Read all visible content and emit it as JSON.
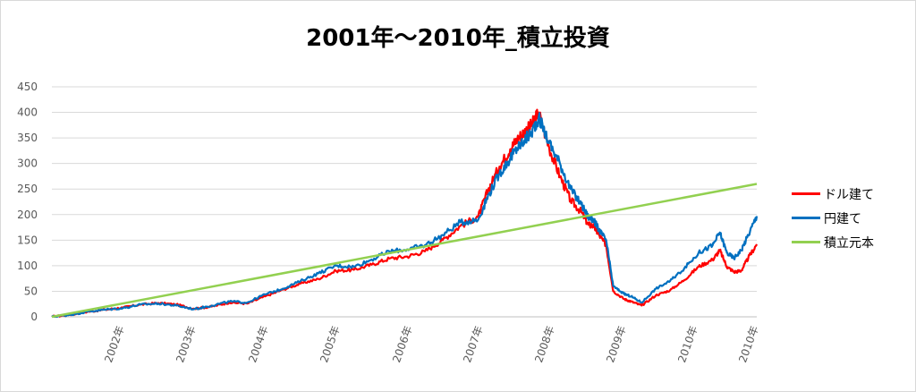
{
  "chart_data": {
    "type": "line",
    "title": "2001年～2010年_積立投資",
    "xlabel": "",
    "ylabel": "",
    "ylim": [
      0,
      450
    ],
    "yticks": [
      0,
      50,
      100,
      150,
      200,
      250,
      300,
      350,
      400,
      450
    ],
    "xlim": [
      2001.0,
      2010.92
    ],
    "xtick_labels": [
      "2002年",
      "2003年",
      "2004年",
      "2005年",
      "2006年",
      "2007年",
      "2008年",
      "2009年",
      "2010年",
      "2010年"
    ],
    "grid": true,
    "legend_position": "right",
    "series": [
      {
        "name": "ドル建て",
        "color": "#ff0000",
        "x": [
          2001.0,
          2001.25,
          2001.5,
          2001.75,
          2002.0,
          2002.25,
          2002.5,
          2002.75,
          2003.0,
          2003.25,
          2003.5,
          2003.75,
          2004.0,
          2004.25,
          2004.5,
          2004.75,
          2005.0,
          2005.25,
          2005.5,
          2005.75,
          2006.0,
          2006.25,
          2006.5,
          2006.75,
          2007.0,
          2007.15,
          2007.3,
          2007.45,
          2007.55,
          2007.65,
          2007.75,
          2007.85,
          2008.0,
          2008.15,
          2008.3,
          2008.45,
          2008.55,
          2008.62,
          2008.7,
          2008.8,
          2008.9,
          2009.05,
          2009.15,
          2009.3,
          2009.5,
          2009.7,
          2009.9,
          2010.1,
          2010.3,
          2010.4,
          2010.5,
          2010.6,
          2010.7,
          2010.8,
          2010.92
        ],
        "values": [
          0,
          4,
          10,
          14,
          18,
          24,
          27,
          24,
          16,
          20,
          28,
          26,
          40,
          53,
          65,
          74,
          90,
          92,
          102,
          114,
          118,
          128,
          150,
          178,
          196,
          252,
          294,
          328,
          348,
          362,
          375,
          400,
          330,
          275,
          228,
          205,
          180,
          178,
          160,
          140,
          50,
          35,
          30,
          22,
          42,
          52,
          72,
          98,
          112,
          130,
          98,
          88,
          90,
          115,
          142
        ]
      },
      {
        "name": "円建て",
        "color": "#0070c0",
        "x": [
          2001.0,
          2001.25,
          2001.5,
          2001.75,
          2002.0,
          2002.25,
          2002.5,
          2002.75,
          2003.0,
          2003.25,
          2003.5,
          2003.75,
          2004.0,
          2004.25,
          2004.5,
          2004.75,
          2005.0,
          2005.25,
          2005.5,
          2005.75,
          2006.0,
          2006.25,
          2006.5,
          2006.75,
          2007.0,
          2007.15,
          2007.3,
          2007.45,
          2007.55,
          2007.65,
          2007.75,
          2007.85,
          2008.0,
          2008.15,
          2008.3,
          2008.45,
          2008.55,
          2008.62,
          2008.7,
          2008.8,
          2008.9,
          2009.05,
          2009.15,
          2009.3,
          2009.5,
          2009.7,
          2009.9,
          2010.1,
          2010.3,
          2010.4,
          2010.5,
          2010.6,
          2010.7,
          2010.8,
          2010.92
        ],
        "values": [
          0,
          4,
          10,
          14,
          17,
          24,
          26,
          22,
          15,
          22,
          30,
          28,
          44,
          55,
          70,
          85,
          100,
          98,
          112,
          128,
          132,
          140,
          160,
          185,
          190,
          240,
          280,
          310,
          330,
          345,
          360,
          390,
          340,
          300,
          250,
          220,
          195,
          190,
          170,
          150,
          60,
          45,
          40,
          28,
          55,
          70,
          95,
          125,
          140,
          165,
          125,
          115,
          130,
          160,
          197
        ]
      },
      {
        "name": "積立元本",
        "color": "#92d050",
        "x": [
          2001.0,
          2010.92
        ],
        "values": [
          0,
          260
        ]
      }
    ]
  }
}
